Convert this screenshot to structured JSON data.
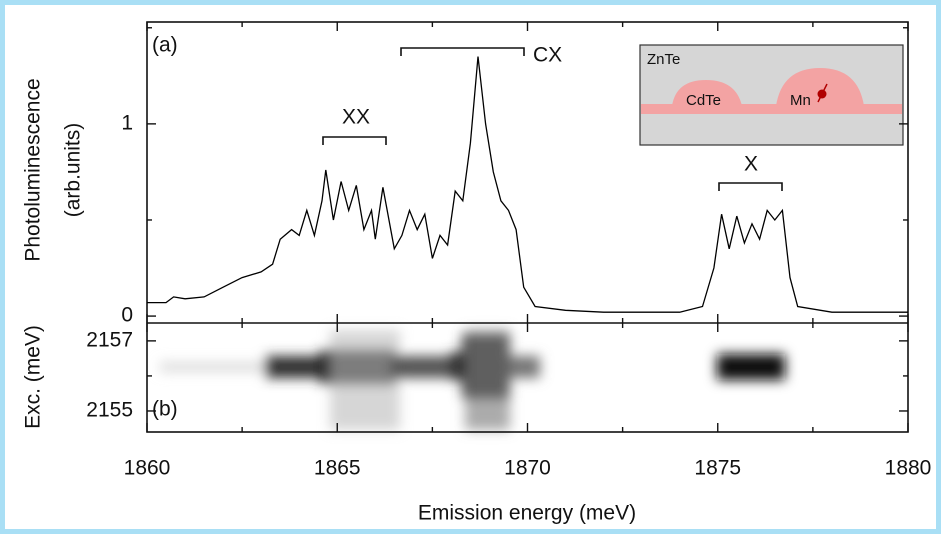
{
  "chart_data": [
    {
      "type": "line",
      "panel_label": "(a)",
      "y_label": "Photoluminescence",
      "y_label_2": "(arb.units)",
      "x": [
        1860,
        1860.5,
        1860.7,
        1861,
        1861.5,
        1862,
        1862.5,
        1863,
        1863.3,
        1863.5,
        1863.8,
        1864,
        1864.2,
        1864.4,
        1864.6,
        1864.7,
        1864.9,
        1865.1,
        1865.3,
        1865.5,
        1865.7,
        1865.9,
        1866,
        1866.2,
        1866.5,
        1866.7,
        1866.9,
        1867.1,
        1867.3,
        1867.5,
        1867.7,
        1867.9,
        1868.1,
        1868.3,
        1868.5,
        1868.7,
        1868.9,
        1869.1,
        1869.3,
        1869.5,
        1869.7,
        1869.9,
        1870.2,
        1871,
        1872,
        1873,
        1874,
        1874.6,
        1874.9,
        1875.1,
        1875.3,
        1875.5,
        1875.7,
        1875.9,
        1876.1,
        1876.3,
        1876.5,
        1876.7,
        1876.9,
        1877.1,
        1878,
        1880
      ],
      "values": [
        0.07,
        0.07,
        0.1,
        0.09,
        0.1,
        0.15,
        0.2,
        0.23,
        0.27,
        0.4,
        0.45,
        0.42,
        0.55,
        0.42,
        0.6,
        0.76,
        0.5,
        0.7,
        0.55,
        0.68,
        0.45,
        0.55,
        0.4,
        0.67,
        0.35,
        0.42,
        0.55,
        0.45,
        0.53,
        0.3,
        0.42,
        0.37,
        0.65,
        0.6,
        0.9,
        1.35,
        1.0,
        0.75,
        0.6,
        0.55,
        0.45,
        0.15,
        0.05,
        0.03,
        0.02,
        0.02,
        0.02,
        0.05,
        0.25,
        0.53,
        0.35,
        0.52,
        0.38,
        0.48,
        0.4,
        0.55,
        0.5,
        0.55,
        0.2,
        0.05,
        0.02,
        0.02
      ],
      "color": "#000000",
      "xlim": [
        1860,
        1880
      ],
      "ylim": [
        -0.036,
        1.53
      ],
      "yticks": [
        0,
        1
      ],
      "yminor": [
        0.5,
        1.5
      ],
      "annotations": [
        "XX",
        "CX",
        "X"
      ],
      "inset": {
        "matrix": "ZnTe",
        "dot": "CdTe",
        "ion": "Mn"
      }
    },
    {
      "type": "image",
      "panel_label": "(b)",
      "y_label": "Exc. (meV)",
      "x_label": "Emission energy (meV)",
      "xlim": [
        1860,
        1880
      ],
      "xticks": [
        1860,
        1865,
        1870,
        1875,
        1880
      ],
      "xminor": [
        1862.5,
        1867.5,
        1872.5,
        1877.5
      ],
      "ylim": [
        2154.4,
        2157.51
      ],
      "yticks": [
        2157,
        2155
      ],
      "yminor": [
        2156
      ]
    }
  ]
}
